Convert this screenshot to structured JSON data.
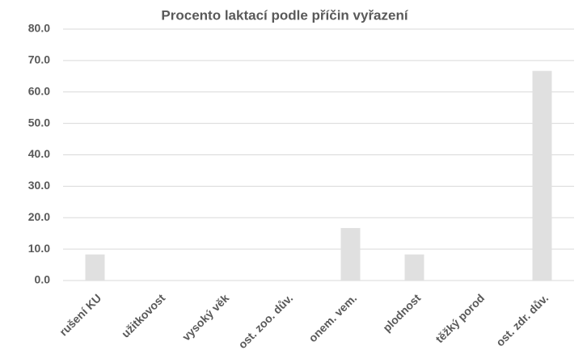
{
  "chart_data": {
    "type": "bar",
    "title": "Procento laktací podle příčin vyřazení",
    "categories": [
      "rušení KU",
      "užitkovost",
      "vysoký věk",
      "ost. zoo. dův.",
      "onem. vem.",
      "plodnost",
      "těžký porod",
      "ost. zdr. dův."
    ],
    "values": [
      8.3,
      0,
      0,
      0,
      16.7,
      8.3,
      0,
      66.7
    ],
    "color": "#e0e0e0",
    "ylim": [
      0,
      80
    ],
    "yticks": [
      {
        "value": 0,
        "label": "0.0"
      },
      {
        "value": 10,
        "label": "10.0"
      },
      {
        "value": 20,
        "label": "20.0"
      },
      {
        "value": 30,
        "label": "30.0"
      },
      {
        "value": 40,
        "label": "40.0"
      },
      {
        "value": 50,
        "label": "50.0"
      },
      {
        "value": 60,
        "label": "60.0"
      },
      {
        "value": 70,
        "label": "70.0"
      },
      {
        "value": 80,
        "label": "80.0"
      }
    ],
    "grid": true
  }
}
